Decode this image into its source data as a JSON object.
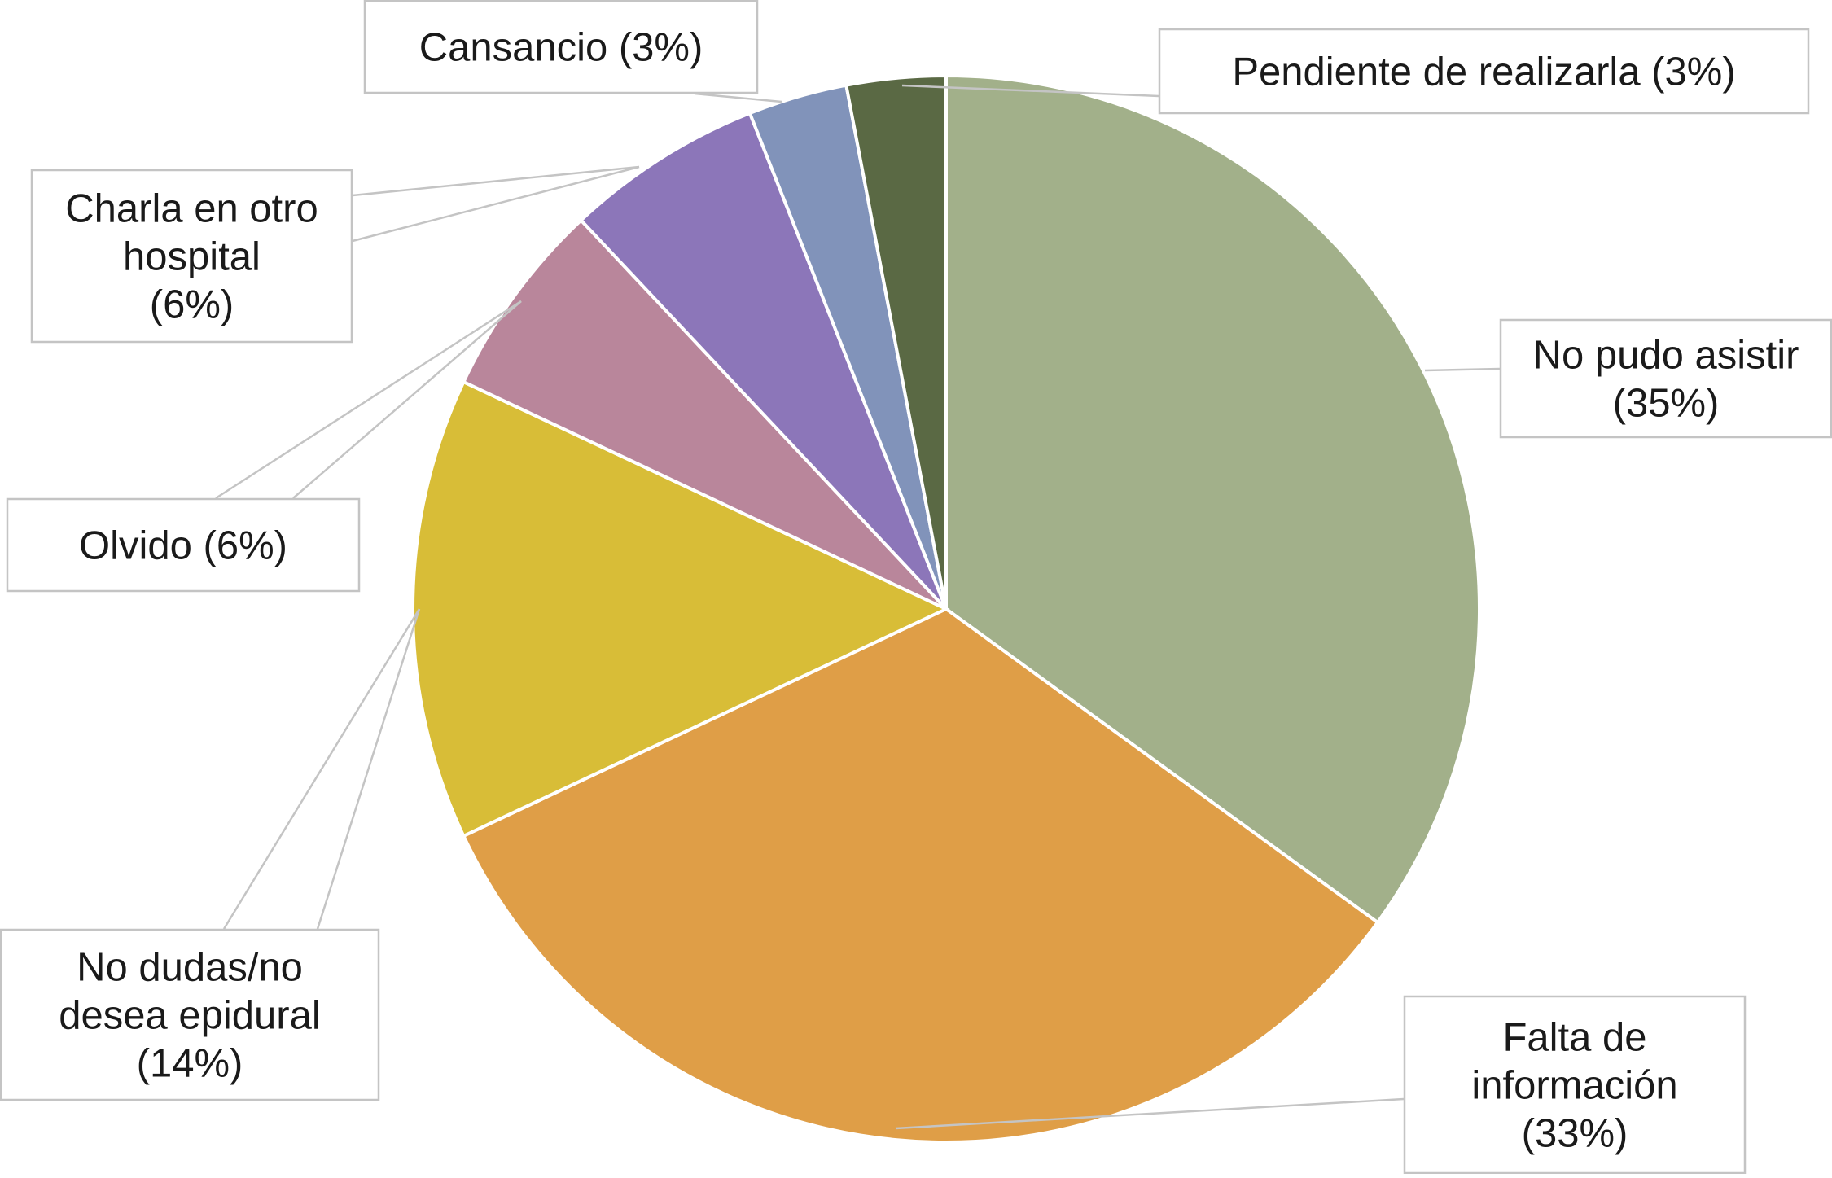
{
  "chart_data": {
    "type": "pie",
    "start_angle_deg": 0,
    "direction": "clockwise",
    "slices": [
      {
        "label_lines": [
          "No pudo asistir",
          "(35%)"
        ],
        "value": 35,
        "color": "#a2b08a"
      },
      {
        "label_lines": [
          "Falta de",
          "información",
          "(33%)"
        ],
        "value": 33,
        "color": "#df9e47"
      },
      {
        "label_lines": [
          "No dudas/no",
          "desea epidural",
          "(14%)"
        ],
        "value": 14,
        "color": "#d8bd37"
      },
      {
        "label_lines": [
          "Olvido (6%)"
        ],
        "value": 6,
        "color": "#b9869b"
      },
      {
        "label_lines": [
          "Charla en otro",
          "hospital",
          "(6%)"
        ],
        "value": 6,
        "color": "#8c76b9"
      },
      {
        "label_lines": [
          "Cansancio (3%)"
        ],
        "value": 3,
        "color": "#8193ba"
      },
      {
        "label_lines": [
          "Pendiente de realizarla (3%)"
        ],
        "value": 3,
        "color": "#5a6944"
      }
    ],
    "label_border_color": "#c4c4c4",
    "leader_line_color": "#c4c4c4",
    "slice_border_color": "#ffffff"
  }
}
